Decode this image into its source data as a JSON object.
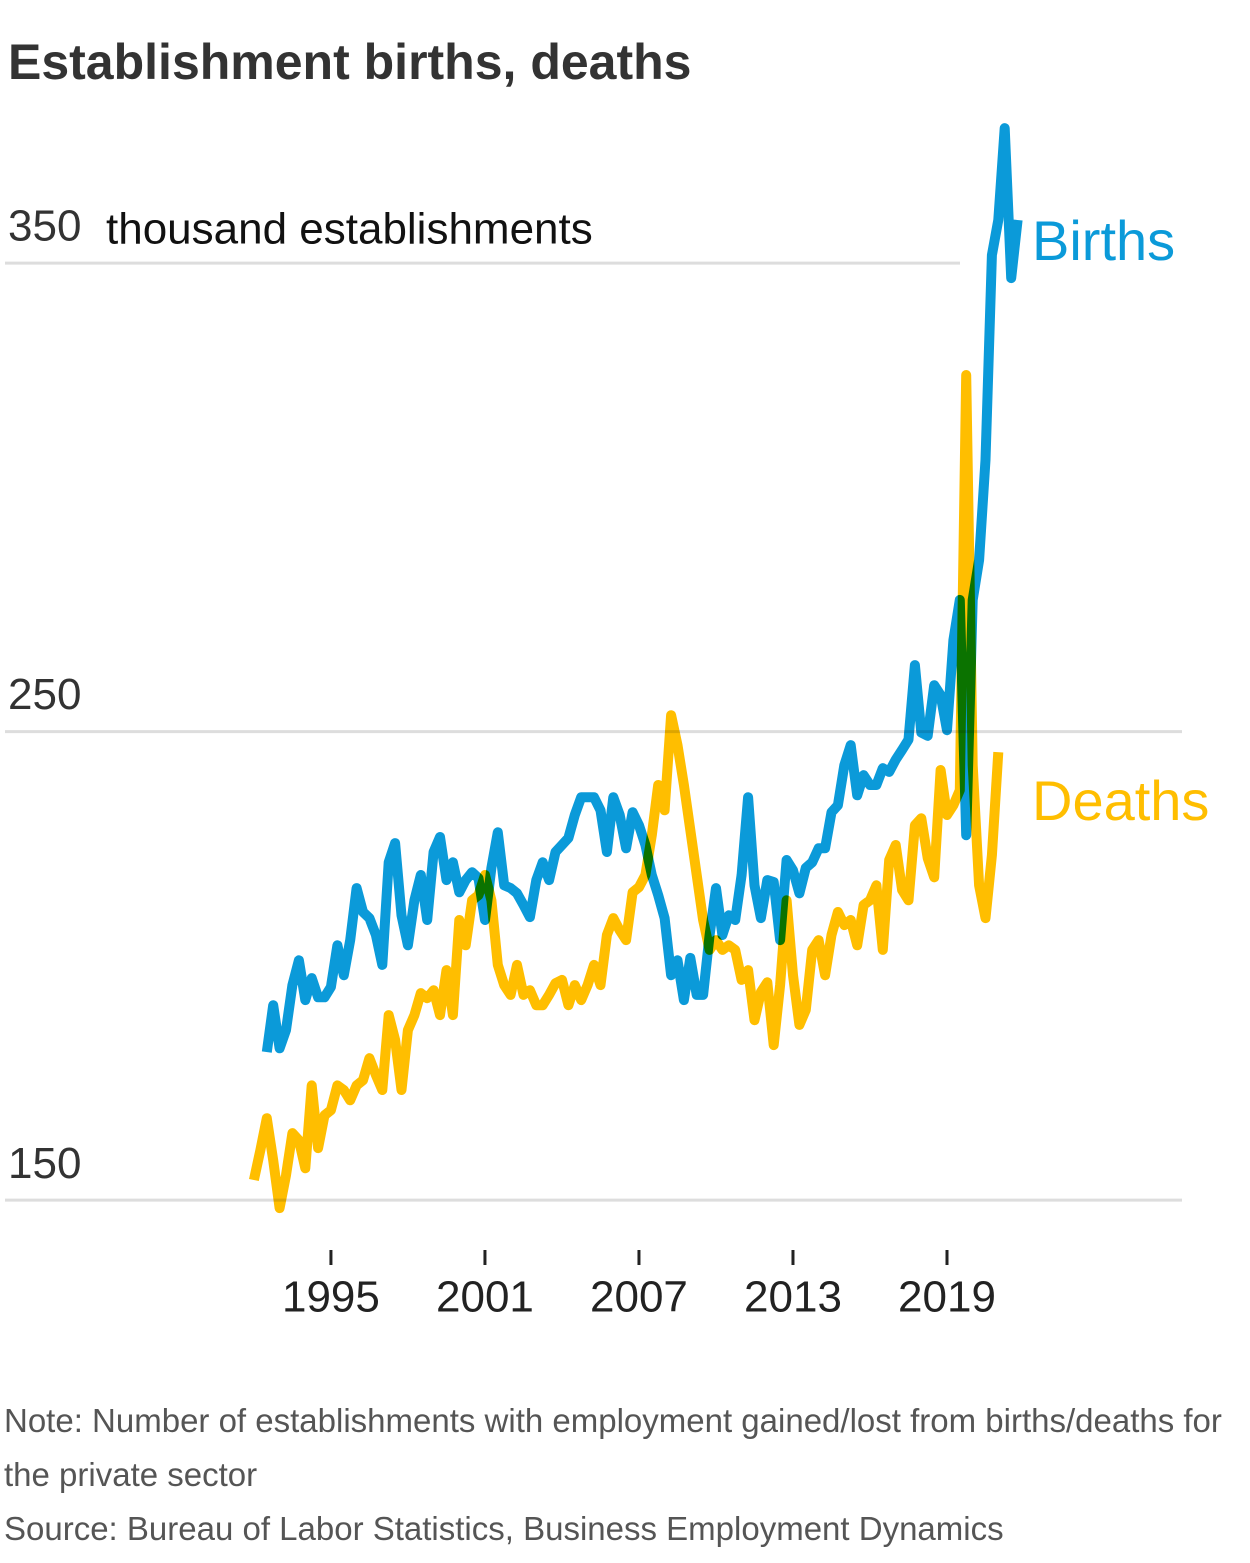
{
  "chart_data": {
    "type": "line",
    "title": "Establishment births, deaths",
    "y_label": "thousand establishments",
    "note": "Note: Number of establishments with employment gained/lost from births/deaths for the private sector",
    "source": "Source: Bureau of Labor Statistics, Business Employment Dynamics",
    "x": [
      1992,
      1992.25,
      1992.5,
      1992.75,
      1993,
      1993.25,
      1993.5,
      1993.75,
      1994,
      1994.25,
      1994.5,
      1994.75,
      1995,
      1995.25,
      1995.5,
      1995.75,
      1996,
      1996.25,
      1996.5,
      1996.75,
      1997,
      1997.25,
      1997.5,
      1997.75,
      1998,
      1998.25,
      1998.5,
      1998.75,
      1999,
      1999.25,
      1999.5,
      1999.75,
      2000,
      2000.25,
      2000.5,
      2000.75,
      2001,
      2001.25,
      2001.5,
      2001.75,
      2002,
      2002.25,
      2002.5,
      2002.75,
      2003,
      2003.25,
      2003.5,
      2003.75,
      2004,
      2004.25,
      2004.5,
      2004.75,
      2005,
      2005.25,
      2005.5,
      2005.75,
      2006,
      2006.25,
      2006.5,
      2006.75,
      2007,
      2007.25,
      2007.5,
      2007.75,
      2008,
      2008.25,
      2008.5,
      2008.75,
      2009,
      2009.25,
      2009.5,
      2009.75,
      2010,
      2010.25,
      2010.5,
      2010.75,
      2011,
      2011.25,
      2011.5,
      2011.75,
      2012,
      2012.25,
      2012.5,
      2012.75,
      2013,
      2013.25,
      2013.5,
      2013.75,
      2014,
      2014.25,
      2014.5,
      2014.75,
      2015,
      2015.25,
      2015.5,
      2015.75,
      2016,
      2016.25,
      2016.5,
      2016.75,
      2017,
      2017.25,
      2017.5,
      2017.75,
      2018,
      2018.25,
      2018.5,
      2018.75,
      2019,
      2019.25,
      2019.5,
      2019.75,
      2020,
      2020.25,
      2020.5,
      2020.75,
      2021,
      2021.25,
      2021.5,
      2021.75
    ],
    "series": [
      {
        "name": "Births",
        "color": "#0b9ad9",
        "values": [
          null,
          null,
          181.6,
          191.6,
          182.4,
          186.3,
          195.9,
          201.2,
          192.7,
          197.4,
          193.3,
          193.3,
          195.5,
          204.4,
          198,
          205.5,
          216.6,
          211.5,
          210.2,
          206.6,
          200.2,
          222.1,
          226.2,
          210.8,
          204.4,
          214,
          219.4,
          209.8,
          224.3,
          227.5,
          218.3,
          222.1,
          215.7,
          218.3,
          220,
          218.7,
          209.8,
          220.9,
          228.5,
          217.2,
          216.6,
          215.5,
          213,
          210.4,
          218.3,
          222.1,
          218.3,
          224.3,
          225.8,
          227.3,
          232.2,
          236,
          236,
          236,
          233.2,
          224.3,
          236,
          232.2,
          225.1,
          232.8,
          230,
          225.8,
          219.4,
          215.1,
          210.2,
          198,
          201.2,
          192.7,
          201.7,
          193.8,
          193.8,
          206.6,
          216.6,
          206.6,
          210.8,
          209.8,
          219.4,
          236,
          217.2,
          210.2,
          218.3,
          217.9,
          205.5,
          222.6,
          220.4,
          215.5,
          220.9,
          222.1,
          225.1,
          225.1,
          232.8,
          234.3,
          242.8,
          247.1,
          236.4,
          240.7,
          238.6,
          238.6,
          242.2,
          241.4,
          244,
          246.1,
          248.3,
          264.2,
          249.8,
          249.1,
          259.9,
          257.8,
          250.3,
          269.5,
          278.1,
          227.9,
          278.1,
          286.6,
          308,
          351.7,
          359.2,
          378.8,
          346.8,
          359.2
        ]
      },
      {
        "name": "Deaths",
        "color": "#ffbe00",
        "values": [
          154.3,
          160.7,
          167.5,
          158.5,
          148.3,
          155.3,
          164.3,
          162.8,
          156.8,
          174.5,
          161.1,
          168.1,
          169.2,
          174.5,
          173.5,
          171.3,
          174.5,
          175.6,
          180.3,
          176.7,
          173.5,
          189.5,
          184.2,
          173.5,
          186.3,
          189.5,
          194.2,
          193.1,
          194.8,
          189.5,
          199.1,
          189.5,
          209.8,
          204.4,
          214,
          215.1,
          219.4,
          214,
          200.2,
          195.9,
          193.8,
          200.2,
          193.8,
          194.8,
          191.6,
          191.6,
          193.8,
          196.3,
          197,
          191.6,
          195.9,
          192.7,
          195.9,
          200.2,
          195.9,
          206.6,
          210.2,
          207.6,
          205.5,
          215.7,
          216.8,
          219.4,
          227.9,
          238.6,
          233.2,
          253.5,
          247.1,
          238.6,
          229,
          219.4,
          209.8,
          203.4,
          205.5,
          203.4,
          204.4,
          203.4,
          197,
          199.1,
          188.4,
          194.4,
          196.5,
          183.1,
          195.9,
          214,
          198,
          187.4,
          190.6,
          203.4,
          205.5,
          198,
          206.6,
          211.5,
          208.7,
          209.8,
          204.4,
          213,
          214,
          217.2,
          203.4,
          222.6,
          225.8,
          216.2,
          214,
          230,
          231.5,
          223,
          218.9,
          241.8,
          232.2,
          234.3,
          237.5,
          326.1,
          242.8,
          217.2,
          210.2,
          223.6,
          245.6,
          null,
          null,
          null
        ]
      }
    ],
    "xlim": [
      1990,
      2022
    ],
    "xticks": [
      1995,
      2001,
      2007,
      2013,
      2019
    ],
    "ylim": [
      140,
      380
    ],
    "yticks": [
      150,
      250,
      350
    ],
    "grid": true
  }
}
